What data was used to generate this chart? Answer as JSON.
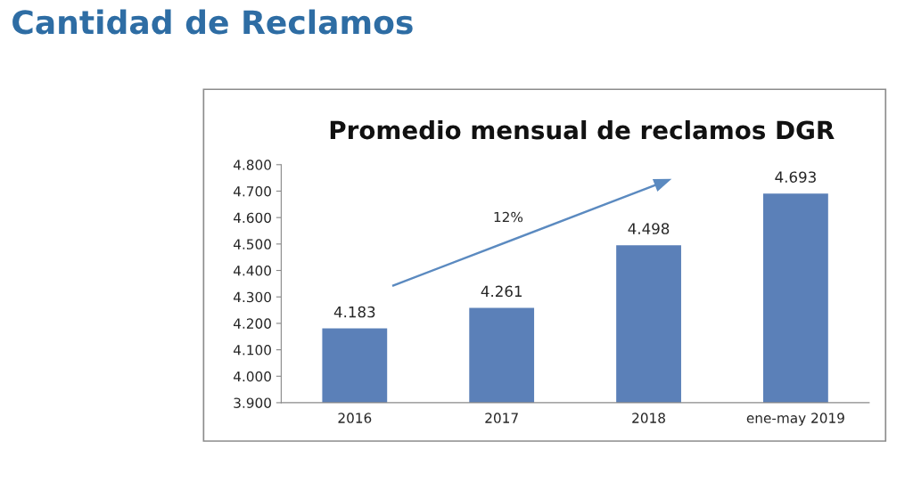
{
  "chart_data": {
    "type": "bar",
    "title": "Promedio mensual de reclamos DGR",
    "annotations": [
      "Cantidad de Reclamos",
      "12%"
    ],
    "categories": [
      "2016",
      "2017",
      "2018",
      "ene-may 2019"
    ],
    "values": [
      4183,
      4261,
      4498,
      4693
    ],
    "value_labels": [
      "4.183",
      "4.261",
      "4.498",
      "4.693"
    ],
    "color": "#5b80b8",
    "ylim": [
      3900,
      4800
    ],
    "yticks": [
      {
        "value": 3900,
        "label": "3.900"
      },
      {
        "value": 4000,
        "label": "4.000"
      },
      {
        "value": 4100,
        "label": "4.100"
      },
      {
        "value": 4200,
        "label": "4.200"
      },
      {
        "value": 4300,
        "label": "4.300"
      },
      {
        "value": 4400,
        "label": "4.400"
      },
      {
        "value": 4500,
        "label": "4.500"
      },
      {
        "value": 4600,
        "label": "4.600"
      },
      {
        "value": 4700,
        "label": "4.700"
      },
      {
        "value": 4800,
        "label": "4.800"
      }
    ],
    "grid": false,
    "legend": false
  }
}
